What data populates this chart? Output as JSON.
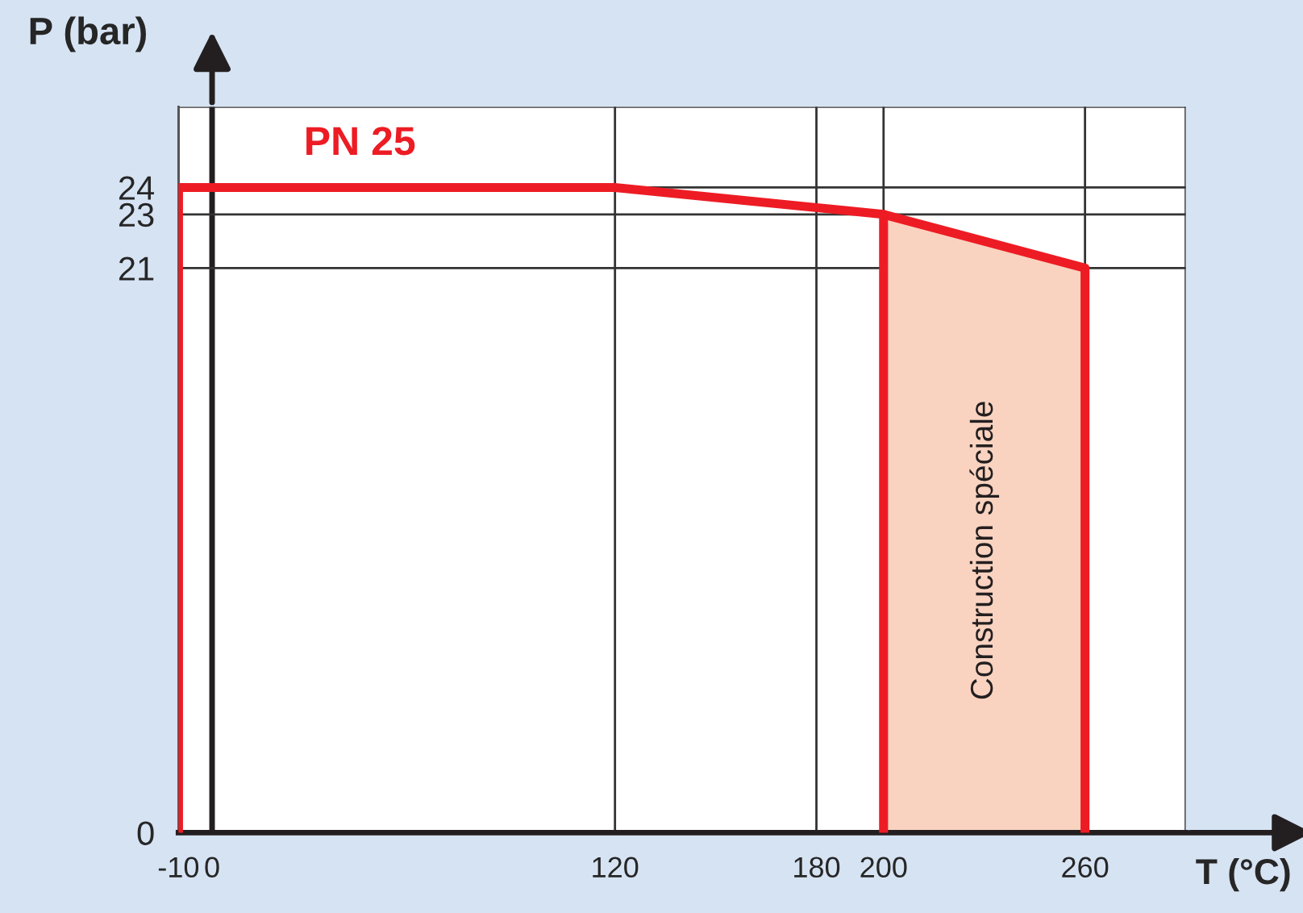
{
  "chart_data": {
    "type": "line",
    "xlabel": "T (°C)",
    "ylabel": "P (bar)",
    "xlim": [
      -10,
      290
    ],
    "ylim": [
      0,
      27
    ],
    "xticks": [
      -10,
      0,
      120,
      180,
      200,
      260,
      {
        "value": 290,
        "label": null
      }
    ],
    "yticks": [
      0,
      21,
      23,
      24,
      {
        "value": 27,
        "label": null
      }
    ],
    "grid": true,
    "marker": "none",
    "line_style": "solid",
    "series": [
      {
        "type": "area",
        "color": "#f9d3c0",
        "x": [
          200,
          260
        ],
        "values": [
          23,
          21
        ]
      },
      {
        "name": "PN 25",
        "color": "#ed1c24",
        "x": [
          -10,
          -10,
          120,
          200,
          260,
          260
        ],
        "values": [
          0,
          24,
          24,
          23,
          21,
          0
        ]
      },
      {
        "color": "#ed1c24",
        "x": [
          200,
          200
        ],
        "values": [
          0,
          23
        ]
      }
    ],
    "annotations": [
      "Construction spéciale"
    ]
  }
}
